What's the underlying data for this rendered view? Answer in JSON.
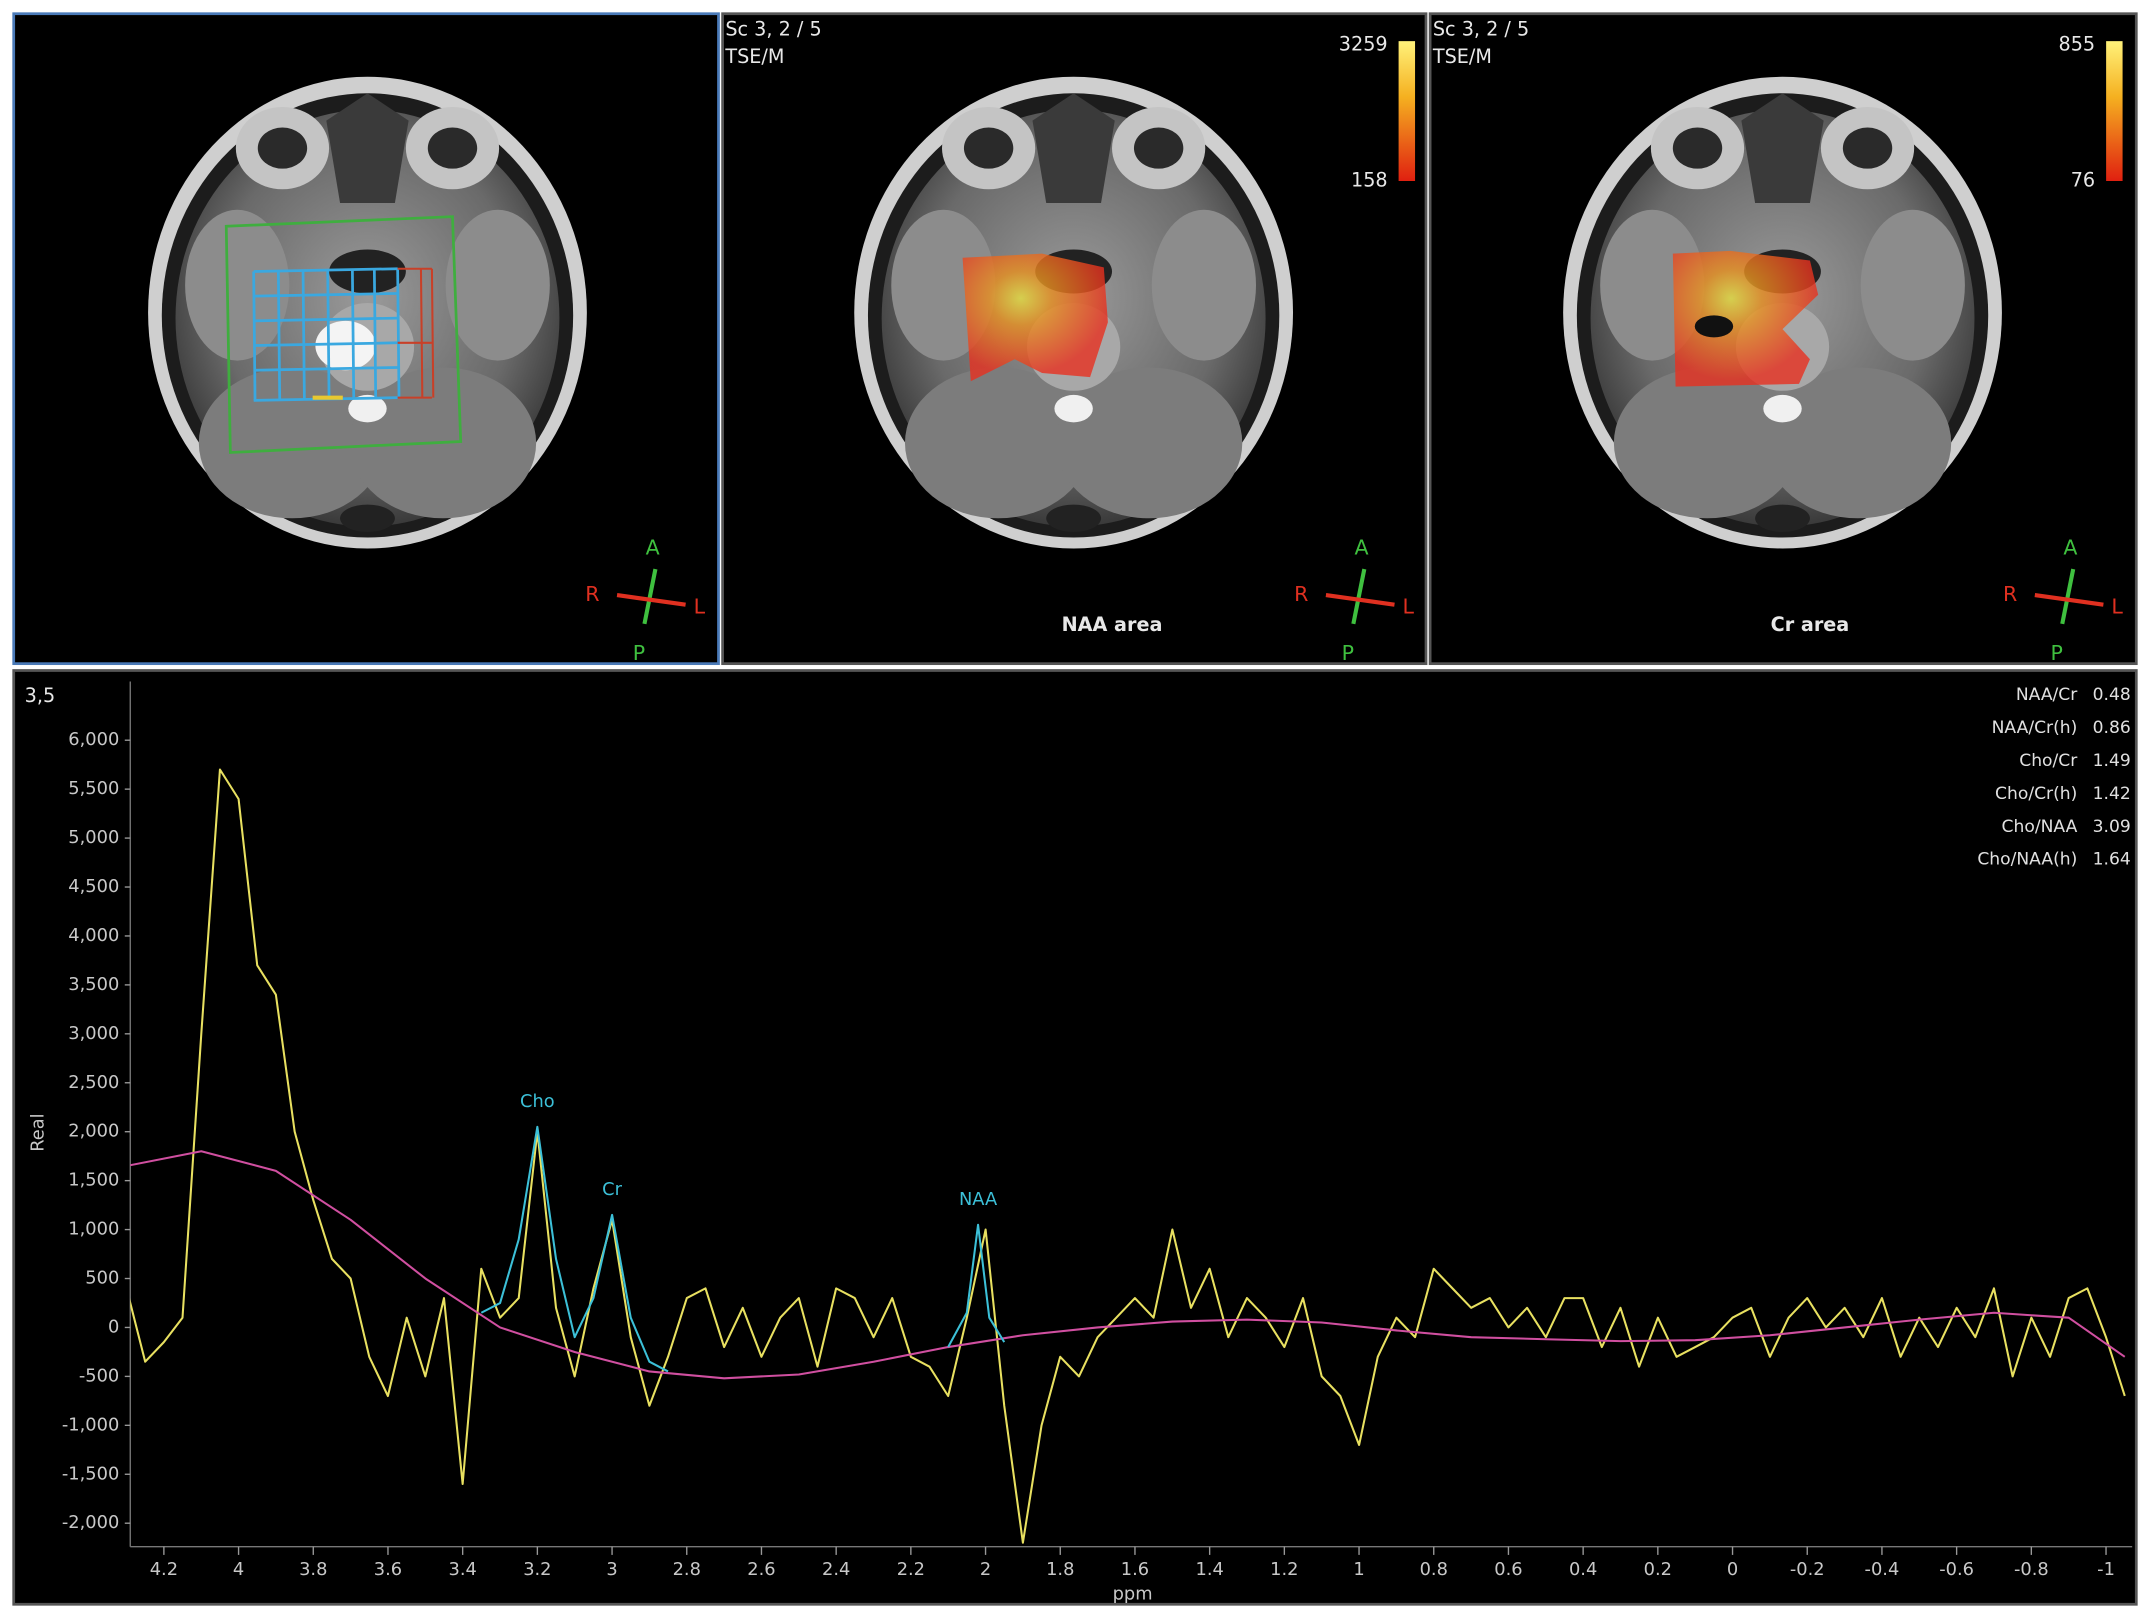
{
  "panels": [
    {
      "orientation": {
        "anterior": "A",
        "posterior": "P",
        "right": "R",
        "left": "L"
      }
    },
    {
      "scan_label": "Sc 3, 2 / 5",
      "series_label": "TSE/M",
      "colorbar": {
        "max": 3259,
        "min": 158
      },
      "caption": "NAA area",
      "orientation": {
        "anterior": "A",
        "posterior": "P",
        "right": "R",
        "left": "L"
      }
    },
    {
      "scan_label": "Sc 3, 2 / 5",
      "series_label": "TSE/M",
      "colorbar": {
        "max": 855,
        "min": 76
      },
      "caption": "Cr area",
      "orientation": {
        "anterior": "A",
        "posterior": "P",
        "right": "R",
        "left": "L"
      }
    }
  ],
  "ratios": [
    {
      "label": "NAA/Cr",
      "value": 0.48
    },
    {
      "label": "NAA/Cr(h)",
      "value": 0.86
    },
    {
      "label": "Cho/Cr",
      "value": 1.49
    },
    {
      "label": "Cho/Cr(h)",
      "value": 1.42
    },
    {
      "label": "Cho/NAA",
      "value": 3.09
    },
    {
      "label": "Cho/NAA(h)",
      "value": 1.64
    }
  ],
  "chart_data": {
    "type": "line",
    "corner_label": "3,5",
    "xlabel": "ppm",
    "ylabel": "Real",
    "xlim": [
      4.29,
      -1.07
    ],
    "ylim": [
      -2240,
      6600
    ],
    "xticks": [
      4.2,
      4,
      3.8,
      3.6,
      3.4,
      3.2,
      3,
      2.8,
      2.6,
      2.4,
      2.2,
      2,
      1.8,
      1.6,
      1.4,
      1.2,
      1,
      0.8,
      0.6,
      0.4,
      0.2,
      0,
      -0.2,
      -0.4,
      -0.6,
      -0.8,
      -1
    ],
    "yticks": [
      {
        "value": -2000,
        "label": "-2,000"
      },
      {
        "value": -1500,
        "label": "-1,500"
      },
      {
        "value": -1000,
        "label": "-1,000"
      },
      -500,
      0,
      500,
      {
        "value": 1000,
        "label": "1,000"
      },
      {
        "value": 1500,
        "label": "1,500"
      },
      {
        "value": 2000,
        "label": "2,000"
      },
      {
        "value": 2500,
        "label": "2,500"
      },
      {
        "value": 3000,
        "label": "3,000"
      },
      {
        "value": 3500,
        "label": "3,500"
      },
      {
        "value": 4000,
        "label": "4,000"
      },
      {
        "value": 4500,
        "label": "4,500"
      },
      {
        "value": 5000,
        "label": "5,000"
      },
      {
        "value": 5500,
        "label": "5,500"
      },
      {
        "value": 6000,
        "label": "6,000"
      }
    ],
    "series": [
      {
        "color": "#e8e060",
        "x": [
          4.3,
          4.25,
          4.2,
          4.15,
          4.1,
          4.05,
          4.0,
          3.95,
          3.9,
          3.85,
          3.8,
          3.75,
          3.7,
          3.65,
          3.6,
          3.55,
          3.5,
          3.45,
          3.4,
          3.35,
          3.3,
          3.25,
          3.2,
          3.15,
          3.1,
          3.05,
          3.0,
          2.95,
          2.9,
          2.85,
          2.8,
          2.75,
          2.7,
          2.65,
          2.6,
          2.55,
          2.5,
          2.45,
          2.4,
          2.35,
          2.3,
          2.25,
          2.2,
          2.15,
          2.1,
          2.05,
          2.0,
          1.95,
          1.9,
          1.85,
          1.8,
          1.75,
          1.7,
          1.65,
          1.6,
          1.55,
          1.5,
          1.45,
          1.4,
          1.35,
          1.3,
          1.25,
          1.2,
          1.15,
          1.1,
          1.05,
          1.0,
          0.95,
          0.9,
          0.85,
          0.8,
          0.75,
          0.7,
          0.65,
          0.6,
          0.55,
          0.5,
          0.45,
          0.4,
          0.35,
          0.3,
          0.25,
          0.2,
          0.15,
          0.1,
          0.05,
          0,
          -0.05,
          -0.1,
          -0.15,
          -0.2,
          -0.25,
          -0.3,
          -0.35,
          -0.4,
          -0.45,
          -0.5,
          -0.55,
          -0.6,
          -0.65,
          -0.7,
          -0.75,
          -0.8,
          -0.85,
          -0.9,
          -0.95,
          -1.0,
          -1.05
        ],
        "values": [
          400,
          -350,
          -150,
          100,
          3000,
          5700,
          5400,
          3700,
          3400,
          2000,
          1300,
          700,
          500,
          -300,
          -700,
          100,
          -500,
          300,
          -1600,
          600,
          100,
          300,
          2000,
          200,
          -500,
          400,
          1100,
          -100,
          -800,
          -300,
          300,
          400,
          -200,
          200,
          -300,
          100,
          300,
          -400,
          400,
          300,
          -100,
          300,
          -300,
          -400,
          -700,
          100,
          1000,
          -800,
          -2200,
          -1000,
          -300,
          -500,
          -100,
          100,
          300,
          100,
          1000,
          200,
          600,
          -100,
          300,
          100,
          -200,
          300,
          -500,
          -700,
          -1200,
          -300,
          100,
          -100,
          600,
          400,
          200,
          300,
          0,
          200,
          -100,
          300,
          300,
          -200,
          200,
          -400,
          100,
          -300,
          -200,
          -100,
          100,
          200,
          -300,
          100,
          300,
          0,
          200,
          -100,
          300,
          -300,
          100,
          -200,
          200,
          -100,
          400,
          -500,
          100,
          -300,
          300,
          400,
          -100,
          -700
        ]
      },
      {
        "color": "#d04fa0",
        "x": [
          4.3,
          4.1,
          3.9,
          3.7,
          3.5,
          3.3,
          3.1,
          2.9,
          2.7,
          2.5,
          2.3,
          2.1,
          1.9,
          1.7,
          1.5,
          1.3,
          1.1,
          0.9,
          0.7,
          0.5,
          0.3,
          0.1,
          -0.1,
          -0.3,
          -0.5,
          -0.7,
          -0.9,
          -1.05
        ],
        "values": [
          1650,
          1800,
          1600,
          1100,
          500,
          0,
          -250,
          -450,
          -520,
          -480,
          -350,
          -200,
          -80,
          0,
          60,
          80,
          50,
          -30,
          -100,
          -120,
          -140,
          -130,
          -80,
          0,
          80,
          150,
          100,
          -300
        ]
      },
      {
        "color": "#3cc0d8",
        "x": [
          3.35,
          3.3,
          3.25,
          3.2,
          3.15,
          3.1,
          3.05,
          3.0,
          2.95,
          2.9,
          2.85,
          2.5,
          2.1,
          2.05,
          2.02,
          1.99,
          1.95
        ],
        "values": [
          150,
          250,
          900,
          2050,
          700,
          -100,
          300,
          1150,
          100,
          -350,
          -450,
          null,
          -200,
          150,
          1050,
          100,
          -150
        ]
      }
    ],
    "peak_labels": [
      {
        "text": "Cho",
        "ppm": 3.2
      },
      {
        "text": "Cr",
        "ppm": 3.0
      },
      {
        "text": "NAA",
        "ppm": 2.02
      }
    ]
  }
}
